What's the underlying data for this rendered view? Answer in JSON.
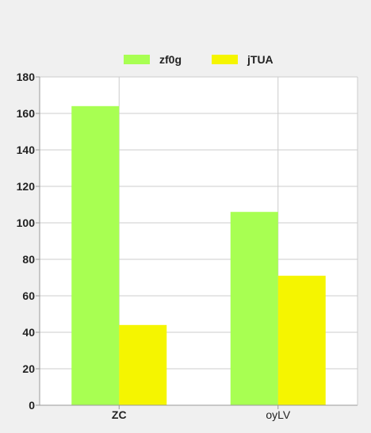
{
  "chart_data": {
    "type": "bar",
    "categories": [
      "ZC",
      "oyLV"
    ],
    "series": [
      {
        "name": "zf0g",
        "values": [
          164,
          106
        ],
        "color": "#a8ff52"
      },
      {
        "name": "jTUA",
        "values": [
          44,
          71
        ],
        "color": "#f5f500"
      }
    ],
    "ylim": [
      0,
      180
    ],
    "yticks": [
      0,
      20,
      40,
      60,
      80,
      100,
      120,
      140,
      160,
      180
    ],
    "grid": true,
    "legend_position": "top-center",
    "category_label_weights": [
      "bold",
      "normal"
    ]
  }
}
